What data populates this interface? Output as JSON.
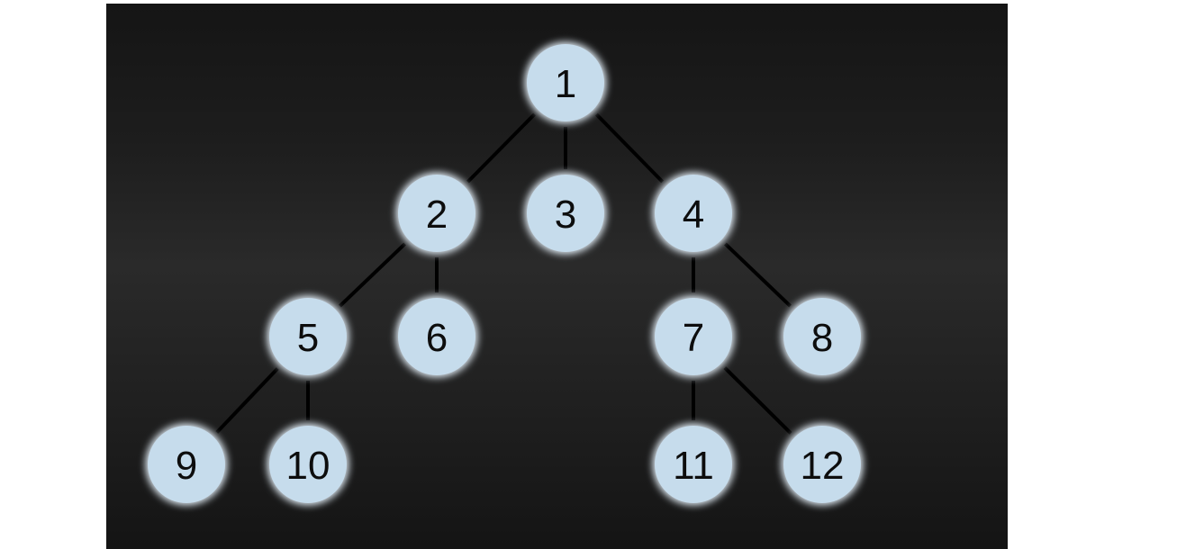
{
  "diagram": {
    "colors": {
      "node_fill": "#c6dcec",
      "node_glow": "#e4eff8",
      "edge": "#000000",
      "label": "#0d0d0d"
    },
    "nodes": [
      {
        "id": "1",
        "label": "1"
      },
      {
        "id": "2",
        "label": "2"
      },
      {
        "id": "3",
        "label": "3"
      },
      {
        "id": "4",
        "label": "4"
      },
      {
        "id": "5",
        "label": "5"
      },
      {
        "id": "6",
        "label": "6"
      },
      {
        "id": "7",
        "label": "7"
      },
      {
        "id": "8",
        "label": "8"
      },
      {
        "id": "9",
        "label": "9"
      },
      {
        "id": "10",
        "label": "10"
      },
      {
        "id": "11",
        "label": "11"
      },
      {
        "id": "12",
        "label": "12"
      }
    ],
    "edges": [
      {
        "from": "1",
        "to": "2"
      },
      {
        "from": "1",
        "to": "3"
      },
      {
        "from": "1",
        "to": "4"
      },
      {
        "from": "2",
        "to": "5"
      },
      {
        "from": "2",
        "to": "6"
      },
      {
        "from": "4",
        "to": "7"
      },
      {
        "from": "4",
        "to": "8"
      },
      {
        "from": "5",
        "to": "9"
      },
      {
        "from": "5",
        "to": "10"
      },
      {
        "from": "7",
        "to": "11"
      },
      {
        "from": "7",
        "to": "12"
      }
    ]
  }
}
